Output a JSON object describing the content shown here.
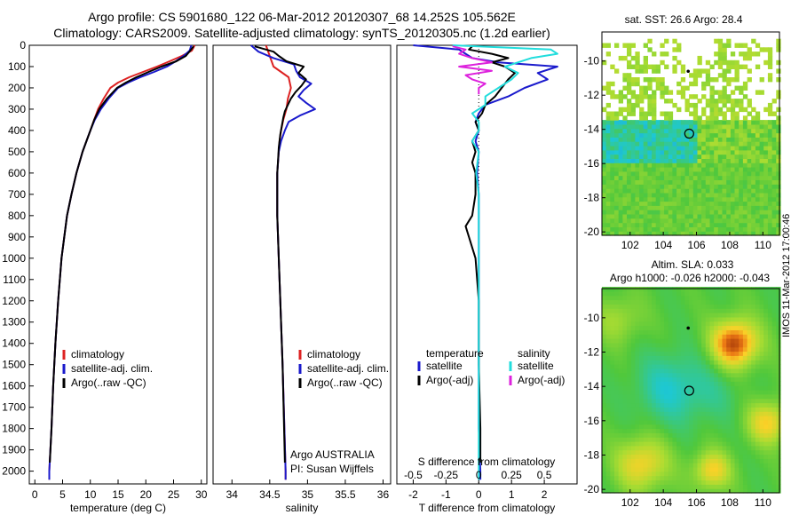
{
  "header": {
    "title_line1": "Argo profile: CS 5901680_122 06-Mar-2012 20120307_68 14.252S 105.562E",
    "title_line2": "Climatology: CARS2009. Satellite-adjusted climatology: synTS_20120305.nc (1.2d earlier)"
  },
  "footer": {
    "stamp": "IMOS 11-Mar-2012 17:00:46"
  },
  "colors": {
    "climatology": "#dd2222",
    "satellite": "#1a1acc",
    "argo": "#000000",
    "salinity_satellite": "#22dddd",
    "salinity_argo": "#dd22dd"
  },
  "chart_data": [
    {
      "id": "temperature",
      "type": "line",
      "xlabel": "temperature (deg C)",
      "xlim": [
        -1,
        31
      ],
      "ylim": [
        2060,
        0
      ],
      "xticks": [
        0,
        5,
        10,
        15,
        20,
        25,
        30
      ],
      "yticks": [
        0,
        100,
        200,
        300,
        400,
        500,
        600,
        700,
        800,
        900,
        1000,
        1100,
        1200,
        1300,
        1400,
        1500,
        1600,
        1700,
        1800,
        1900,
        2000
      ],
      "legend": [
        "climatology",
        "satellite-adj. clim.",
        "Argo(..raw -QC)"
      ],
      "series": [
        {
          "name": "climatology",
          "color": "#dd2222",
          "depth": [
            0,
            25,
            50,
            75,
            100,
            125,
            150,
            175,
            200,
            250,
            300,
            350,
            400,
            450,
            500,
            600,
            700,
            800,
            900,
            1000,
            1200,
            1400,
            1600,
            1800,
            2000,
            2040
          ],
          "value": [
            28.8,
            28.3,
            26.5,
            24.3,
            22.0,
            19.5,
            17.0,
            15.0,
            13.6,
            12.4,
            11.4,
            10.7,
            10.0,
            9.3,
            8.6,
            7.5,
            6.6,
            5.8,
            5.3,
            4.8,
            4.2,
            3.7,
            3.3,
            3.0,
            2.6,
            2.6
          ]
        },
        {
          "name": "satellite-adj. clim.",
          "color": "#1a1acc",
          "depth": [
            0,
            25,
            50,
            75,
            100,
            125,
            150,
            175,
            200,
            250,
            300,
            350,
            400,
            450,
            500,
            600,
            700,
            800,
            900,
            1000,
            1200,
            1400,
            1600,
            1800,
            2000,
            2040
          ],
          "value": [
            28.2,
            27.9,
            26.8,
            25.4,
            23.8,
            21.5,
            19.0,
            16.8,
            15.0,
            13.3,
            11.9,
            10.8,
            10.0,
            9.3,
            8.6,
            7.5,
            6.6,
            5.8,
            5.3,
            4.8,
            4.2,
            3.7,
            3.3,
            3.0,
            2.6,
            2.6
          ]
        },
        {
          "name": "Argo(..raw -QC)",
          "color": "#000000",
          "depth": [
            5,
            25,
            50,
            75,
            100,
            125,
            150,
            175,
            200,
            250,
            300,
            350,
            400,
            450,
            500,
            600,
            700,
            800,
            900,
            1000,
            1200,
            1400,
            1600,
            1800,
            1960
          ],
          "value": [
            28.6,
            28.0,
            27.2,
            25.5,
            22.8,
            20.5,
            18.3,
            16.4,
            14.8,
            13.0,
            11.6,
            10.7,
            10.0,
            9.3,
            8.6,
            7.5,
            6.6,
            5.8,
            5.3,
            4.8,
            4.2,
            3.7,
            3.3,
            3.0,
            2.7
          ]
        }
      ]
    },
    {
      "id": "salinity",
      "type": "line",
      "xlabel": "salinity",
      "xlim": [
        33.75,
        36.1
      ],
      "ylim": [
        2060,
        0
      ],
      "xticks": [
        34,
        34.5,
        35,
        35.5,
        36
      ],
      "xticklabels": [
        "34",
        "34.5",
        "35",
        "35.5",
        "36"
      ],
      "legend": [
        "climatology",
        "satellite-adj. clim.",
        "Argo(..raw -QC)"
      ],
      "annotation": [
        "Argo AUSTRALIA",
        "PI: Susan Wijffels"
      ],
      "series": [
        {
          "name": "climatology",
          "color": "#dd2222",
          "depth": [
            0,
            50,
            100,
            150,
            200,
            250,
            300,
            350,
            400,
            450,
            500,
            600,
            800,
            1000,
            1500,
            2000,
            2040
          ],
          "value": [
            34.45,
            34.5,
            34.55,
            34.75,
            34.78,
            34.74,
            34.72,
            34.68,
            34.65,
            34.63,
            34.62,
            34.6,
            34.6,
            34.62,
            34.67,
            34.71,
            34.71
          ]
        },
        {
          "name": "satellite-adj. clim.",
          "color": "#1a1acc",
          "depth": [
            0,
            30,
            60,
            90,
            120,
            150,
            180,
            210,
            240,
            270,
            300,
            330,
            360,
            400,
            450,
            500,
            600,
            800,
            1000,
            1500,
            2000,
            2040
          ],
          "value": [
            34.25,
            34.35,
            34.55,
            34.82,
            34.85,
            34.9,
            35.05,
            34.95,
            34.88,
            34.98,
            35.1,
            34.9,
            34.75,
            34.7,
            34.65,
            34.62,
            34.6,
            34.6,
            34.62,
            34.67,
            34.71,
            34.71
          ]
        },
        {
          "name": "Argo(..raw -QC)",
          "color": "#000000",
          "depth": [
            5,
            30,
            50,
            75,
            100,
            130,
            160,
            190,
            220,
            250,
            280,
            310,
            340,
            380,
            420,
            480,
            540,
            600,
            800,
            1000,
            1500,
            1960
          ],
          "value": [
            34.3,
            34.55,
            34.62,
            34.72,
            34.95,
            34.88,
            34.98,
            34.92,
            34.84,
            34.78,
            34.74,
            34.7,
            34.68,
            34.66,
            34.64,
            34.62,
            34.61,
            34.6,
            34.6,
            34.62,
            34.67,
            34.7
          ]
        }
      ]
    },
    {
      "id": "difference",
      "type": "line",
      "xlabel": "T difference from climatology",
      "top_label": "S difference from climatology",
      "xlim": [
        -2.5,
        3.0
      ],
      "ylim": [
        2060,
        0
      ],
      "xticks": [
        -2,
        -1,
        0,
        1,
        2
      ],
      "xticklabels": [
        "-2",
        "-1",
        "0",
        "1",
        "2"
      ],
      "sticks": [
        -0.5,
        -0.25,
        0,
        0.25,
        0.5
      ],
      "sticklabels": [
        "-0.5",
        "-0.25",
        "0",
        "0.25",
        "0.5"
      ],
      "legend_titles": [
        "temperature",
        "salinity"
      ],
      "legend": [
        "satellite",
        "Argo(-adj)",
        "satellite",
        "Argo(-adj)"
      ],
      "series": [
        {
          "name": "satellite",
          "group": "temperature",
          "color": "#1a1acc",
          "depth": [
            0,
            20,
            40,
            60,
            80,
            100,
            130,
            160,
            200,
            240,
            280,
            320,
            360,
            400,
            450,
            500,
            600,
            700,
            800,
            1000,
            1200,
            1500,
            1800,
            2000,
            2040
          ],
          "value": [
            -2.0,
            -0.6,
            -0.4,
            -0.2,
            0.6,
            2.4,
            1.8,
            2.1,
            1.4,
            0.9,
            0.2,
            0.0,
            -0.1,
            0.0,
            -0.1,
            0.0,
            -0.05,
            0.0,
            0.0,
            0.0,
            0.0,
            0.0,
            0.0,
            0.05,
            0.05
          ]
        },
        {
          "name": "Argo(-adj)",
          "group": "temperature",
          "color": "#000000",
          "depth": [
            5,
            20,
            40,
            60,
            80,
            100,
            130,
            160,
            200,
            240,
            280,
            320,
            360,
            400,
            450,
            500,
            550,
            600,
            700,
            800,
            850,
            900,
            950,
            1000,
            1200,
            1500,
            1800,
            1960
          ],
          "value": [
            -0.2,
            -0.3,
            0.4,
            0.9,
            0.4,
            0.8,
            1.1,
            0.9,
            0.7,
            0.5,
            0.2,
            0.1,
            -0.1,
            0.0,
            -0.2,
            -0.1,
            -0.2,
            -0.1,
            -0.1,
            -0.2,
            -0.4,
            -0.3,
            -0.2,
            -0.1,
            0.0,
            0.0,
            0.05,
            0.05
          ]
        },
        {
          "name": "satellite",
          "group": "salinity",
          "color": "#22dddd",
          "depth": [
            0,
            20,
            40,
            60,
            80,
            100,
            130,
            160,
            200,
            240,
            280,
            320,
            360,
            400,
            450,
            500,
            600,
            700,
            800,
            1000,
            1200,
            1500,
            1800,
            2000,
            2040
          ],
          "value": [
            -0.2,
            0.55,
            0.6,
            0.4,
            0.3,
            0.2,
            0.3,
            0.25,
            0.15,
            0.05,
            0.05,
            -0.05,
            0.0,
            0.0,
            -0.05,
            0.0,
            -0.02,
            0.0,
            0.0,
            0.0,
            0.0,
            0.0,
            0.0,
            0.0,
            0.0
          ]
        },
        {
          "name": "Argo(-adj)",
          "group": "salinity",
          "color": "#dd22dd",
          "depth": [
            5,
            20,
            40,
            60,
            80,
            100,
            120,
            140,
            160,
            180,
            200,
            230
          ],
          "value": [
            -0.2,
            -0.1,
            -0.15,
            -0.05,
            0.1,
            -0.15,
            0.1,
            -0.1,
            -0.05,
            0.05,
            0.0,
            0.0
          ]
        }
      ]
    },
    {
      "id": "sst-map",
      "type": "heatmap",
      "title": "sat. SST: 26.6 Argo: 28.4",
      "xlim": [
        100.3,
        111.0
      ],
      "ylim": [
        -20.2,
        -8.3
      ],
      "xticks": [
        102,
        104,
        106,
        108,
        110
      ],
      "yticks": [
        -10,
        -12,
        -14,
        -16,
        -18,
        -20
      ],
      "marker": {
        "lon": 105.56,
        "lat": -14.25
      }
    },
    {
      "id": "sla-map",
      "type": "heatmap",
      "title_line1": "Altim. SLA: 0.033",
      "title_line2": "Argo h1000: -0.026 h2000: -0.043",
      "xlim": [
        100.3,
        111.0
      ],
      "ylim": [
        -20.2,
        -8.3
      ],
      "xticks": [
        102,
        104,
        106,
        108,
        110
      ],
      "yticks": [
        -10,
        -12,
        -14,
        -16,
        -18,
        -20
      ],
      "marker": {
        "lon": 105.56,
        "lat": -14.25
      }
    }
  ]
}
